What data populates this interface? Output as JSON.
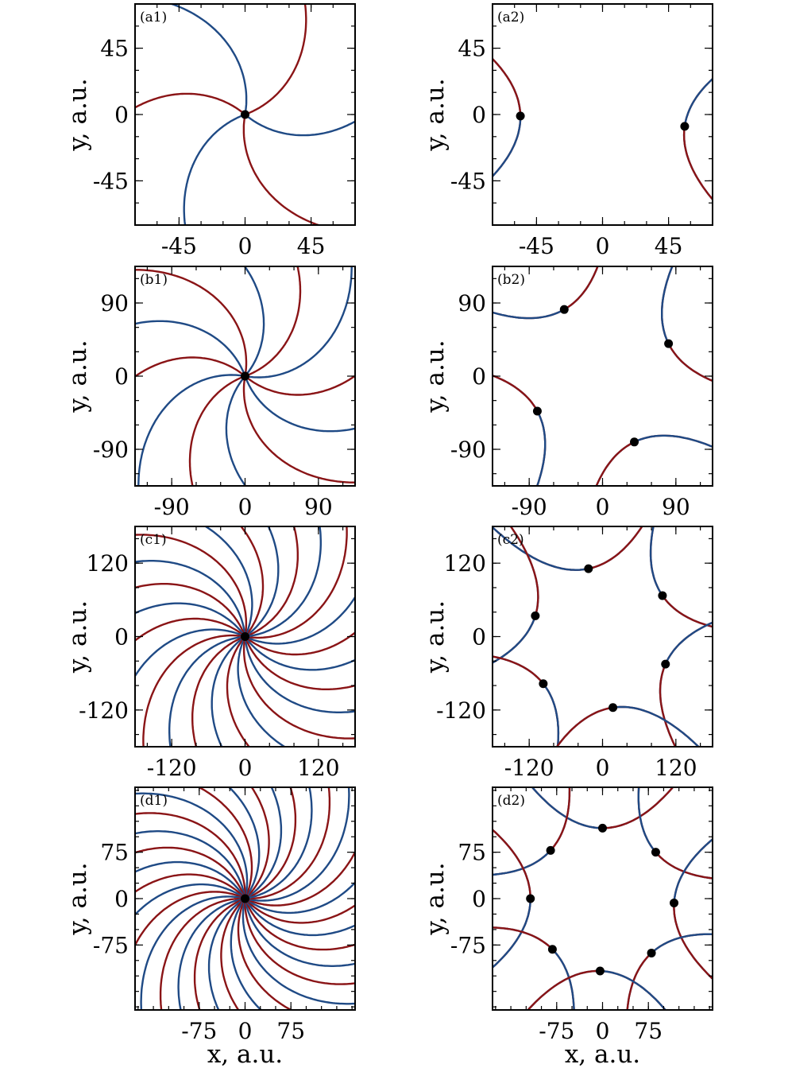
{
  "colors": {
    "red_curves": "#8a1416",
    "blue_curves": "#1f4a85",
    "nodes": "#000000",
    "frame": "#000000"
  },
  "axis_text": {
    "x_label": "x, a.u.",
    "y_label": "y, a.u."
  },
  "chart_data": [
    {
      "panel": "(a1)",
      "type": "line",
      "curve_type": "spiral_arms",
      "xlim": [
        -75,
        75
      ],
      "ylim": [
        -75,
        75
      ],
      "xticks": [
        -45,
        0,
        45
      ],
      "yticks": [
        -45,
        0,
        45
      ],
      "xtick_labels": [
        "-45",
        "0",
        "45"
      ],
      "ytick_labels": [
        "-45",
        "0",
        "45"
      ],
      "x_tick_labels_shown": true,
      "x_axis_label_shown": false,
      "y_axis_label_shown": true,
      "red_arm_count": 3,
      "blue_arm_count": 3,
      "spiral_twist": 0.95,
      "nodes": [
        [
          0,
          0
        ]
      ]
    },
    {
      "panel": "(a2)",
      "type": "line",
      "curve_type": "bent_branches",
      "xlim": [
        -75,
        75
      ],
      "ylim": [
        -75,
        75
      ],
      "xticks": [
        -45,
        0,
        45
      ],
      "yticks": [
        -45,
        0,
        45
      ],
      "xtick_labels": [
        "-45",
        "0",
        "45"
      ],
      "ytick_labels": [
        "-45",
        "0",
        "45"
      ],
      "x_tick_labels_shown": true,
      "x_axis_label_shown": false,
      "y_axis_label_shown": true,
      "nodes": [
        [
          -56,
          -1
        ],
        [
          56,
          -8
        ]
      ]
    },
    {
      "panel": "(b1)",
      "type": "line",
      "curve_type": "spiral_arms",
      "xlim": [
        -135,
        135
      ],
      "ylim": [
        -135,
        135
      ],
      "xticks": [
        -90,
        0,
        90
      ],
      "yticks": [
        -90,
        0,
        90
      ],
      "xtick_labels": [
        "-90",
        "0",
        "90"
      ],
      "ytick_labels": [
        "-90",
        "0",
        "90"
      ],
      "x_tick_labels_shown": true,
      "x_axis_label_shown": false,
      "y_axis_label_shown": true,
      "red_arm_count": 6,
      "blue_arm_count": 6,
      "spiral_twist": 1.05,
      "nodes": [
        [
          0,
          0
        ]
      ]
    },
    {
      "panel": "(b2)",
      "type": "line",
      "curve_type": "bent_branches",
      "xlim": [
        -135,
        135
      ],
      "ylim": [
        -135,
        135
      ],
      "xticks": [
        -90,
        0,
        90
      ],
      "yticks": [
        -90,
        0,
        90
      ],
      "xtick_labels": [
        "-90",
        "0",
        "90"
      ],
      "ytick_labels": [
        "-90",
        "0",
        "90"
      ],
      "x_tick_labels_shown": true,
      "x_axis_label_shown": false,
      "y_axis_label_shown": true,
      "nodes": [
        [
          -47,
          82
        ],
        [
          81,
          40
        ],
        [
          -80,
          -43
        ],
        [
          39,
          -81
        ]
      ]
    },
    {
      "panel": "(c1)",
      "type": "line",
      "curve_type": "spiral_arms",
      "xlim": [
        -180,
        180
      ],
      "ylim": [
        -180,
        180
      ],
      "xticks": [
        -120,
        0,
        120
      ],
      "yticks": [
        -120,
        0,
        120
      ],
      "xtick_labels": [
        "-120",
        "0",
        "120"
      ],
      "ytick_labels": [
        "-120",
        "0",
        "120"
      ],
      "x_tick_labels_shown": true,
      "x_axis_label_shown": false,
      "y_axis_label_shown": true,
      "red_arm_count": 12,
      "blue_arm_count": 12,
      "spiral_twist": 1.1,
      "nodes": [
        [
          0,
          0
        ]
      ]
    },
    {
      "panel": "(c2)",
      "type": "line",
      "curve_type": "bent_branches",
      "xlim": [
        -180,
        180
      ],
      "ylim": [
        -180,
        180
      ],
      "xticks": [
        -120,
        0,
        120
      ],
      "yticks": [
        -120,
        0,
        120
      ],
      "xtick_labels": [
        "-120",
        "0",
        "120"
      ],
      "ytick_labels": [
        "-120",
        "0",
        "120"
      ],
      "x_tick_labels_shown": true,
      "x_axis_label_shown": false,
      "y_axis_label_shown": true,
      "nodes": [
        [
          -23,
          111
        ],
        [
          98,
          67
        ],
        [
          -110,
          34
        ],
        [
          103,
          -45
        ],
        [
          -97,
          -77
        ],
        [
          17,
          -116
        ]
      ]
    },
    {
      "panel": "(d1)",
      "type": "line",
      "curve_type": "spiral_arms",
      "xlim": [
        -180,
        180
      ],
      "ylim": [
        -180,
        180
      ],
      "xticks": [
        -75,
        0,
        75
      ],
      "yticks": [
        -75,
        0,
        75
      ],
      "xtick_labels": [
        "-75",
        "0",
        "75"
      ],
      "ytick_labels": [
        "-75",
        "0",
        "75"
      ],
      "x_tick_labels_shown": true,
      "x_axis_label_shown": true,
      "y_axis_label_shown": true,
      "red_arm_count": 16,
      "blue_arm_count": 16,
      "spiral_twist": 1.15,
      "nodes": [
        [
          0,
          0
        ]
      ]
    },
    {
      "panel": "(d2)",
      "type": "line",
      "curve_type": "bent_branches",
      "xlim": [
        -180,
        180
      ],
      "ylim": [
        -180,
        180
      ],
      "xticks": [
        -75,
        0,
        75
      ],
      "yticks": [
        -75,
        0,
        75
      ],
      "xtick_labels": [
        "-75",
        "0",
        "75"
      ],
      "ytick_labels": [
        "-75",
        "0",
        "75"
      ],
      "x_tick_labels_shown": true,
      "x_axis_label_shown": true,
      "y_axis_label_shown": true,
      "nodes": [
        [
          0,
          114
        ],
        [
          87,
          75
        ],
        [
          -85,
          78
        ],
        [
          117,
          -7
        ],
        [
          -118,
          0
        ],
        [
          80,
          -88
        ],
        [
          -82,
          -82
        ],
        [
          -4,
          -117
        ]
      ]
    }
  ]
}
